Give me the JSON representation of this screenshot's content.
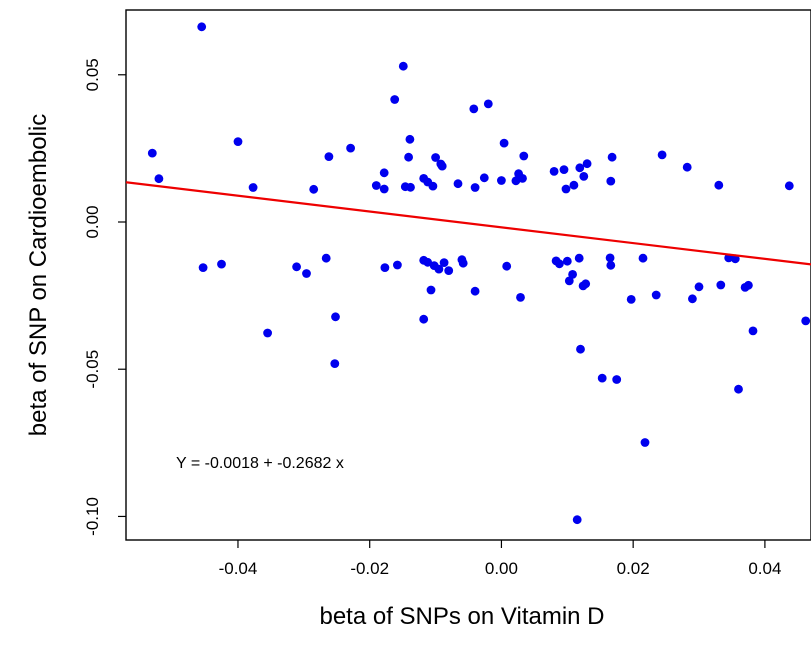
{
  "chart_data": {
    "type": "scatter",
    "title": "",
    "xlabel": "beta of SNPs on Vitamin D",
    "ylabel": "beta of SNP on Cardioembolic",
    "xlim": [
      -0.057,
      0.047
    ],
    "ylim": [
      -0.108,
      0.072
    ],
    "x_ticks": [
      -0.04,
      -0.02,
      0.0,
      0.02,
      0.04
    ],
    "x_tick_labels": [
      "-0.04",
      "-0.02",
      "0.00",
      "0.02",
      "0.04"
    ],
    "y_ticks": [
      0.05,
      0.0,
      -0.05,
      -0.1
    ],
    "y_tick_labels": [
      "0.05",
      "0.00",
      "-0.05",
      "-0.10"
    ],
    "grid": false,
    "point_color": "#0000ee",
    "line_color": "#ee0000",
    "regression": {
      "intercept": -0.0018,
      "slope": -0.2682
    },
    "annotation": "Y =  -0.0018 + -0.2682 x",
    "points": [
      [
        -0.053,
        0.0234
      ],
      [
        -0.052,
        0.0147
      ],
      [
        -0.0455,
        0.0663
      ],
      [
        -0.0453,
        -0.0155
      ],
      [
        -0.0425,
        -0.0143
      ],
      [
        -0.04,
        0.0273
      ],
      [
        -0.0377,
        0.0117
      ],
      [
        -0.0355,
        -0.0377
      ],
      [
        -0.0311,
        -0.0152
      ],
      [
        -0.0296,
        -0.0175
      ],
      [
        -0.0285,
        0.0111
      ],
      [
        -0.0266,
        -0.0123
      ],
      [
        -0.0262,
        0.0222
      ],
      [
        -0.0252,
        -0.0322
      ],
      [
        -0.0253,
        -0.0481
      ],
      [
        -0.0229,
        0.0251
      ],
      [
        -0.019,
        0.0124
      ],
      [
        -0.0178,
        0.0167
      ],
      [
        -0.0178,
        0.0112
      ],
      [
        -0.0177,
        -0.0155
      ],
      [
        -0.0162,
        0.0416
      ],
      [
        -0.0158,
        -0.0146
      ],
      [
        -0.0149,
        0.0529
      ],
      [
        -0.0146,
        0.012
      ],
      [
        -0.0141,
        0.022
      ],
      [
        -0.0139,
        0.0281
      ],
      [
        -0.0138,
        0.0118
      ],
      [
        -0.0118,
        0.0148
      ],
      [
        -0.0118,
        -0.013
      ],
      [
        -0.0118,
        -0.033
      ],
      [
        -0.0112,
        0.0136
      ],
      [
        -0.0112,
        -0.0137
      ],
      [
        -0.0107,
        -0.0231
      ],
      [
        -0.0104,
        0.0122
      ],
      [
        -0.0102,
        -0.0148
      ],
      [
        -0.01,
        0.0219
      ],
      [
        -0.0095,
        -0.016
      ],
      [
        -0.0092,
        0.0197
      ],
      [
        -0.009,
        0.019
      ],
      [
        -0.0087,
        -0.0138
      ],
      [
        -0.008,
        -0.0165
      ],
      [
        -0.0066,
        0.013
      ],
      [
        -0.006,
        -0.0128
      ],
      [
        -0.0058,
        -0.014
      ],
      [
        -0.0042,
        0.0384
      ],
      [
        -0.004,
        0.0117
      ],
      [
        -0.004,
        -0.0235
      ],
      [
        -0.0026,
        0.015
      ],
      [
        -0.002,
        0.0401
      ],
      [
        0.0,
        0.0141
      ],
      [
        0.0004,
        0.0268
      ],
      [
        0.0008,
        -0.015
      ],
      [
        0.0022,
        0.014
      ],
      [
        0.0026,
        0.0164
      ],
      [
        0.0029,
        -0.0256
      ],
      [
        0.0032,
        0.0148
      ],
      [
        0.0034,
        0.0224
      ],
      [
        0.008,
        0.0172
      ],
      [
        0.0083,
        -0.0132
      ],
      [
        0.0088,
        -0.0142
      ],
      [
        0.0095,
        0.0178
      ],
      [
        0.0098,
        0.0112
      ],
      [
        0.01,
        -0.0133
      ],
      [
        0.0103,
        -0.02
      ],
      [
        0.0108,
        -0.0178
      ],
      [
        0.011,
        0.0125
      ],
      [
        0.0115,
        -0.1011
      ],
      [
        0.0118,
        -0.0123
      ],
      [
        0.0119,
        0.0184
      ],
      [
        0.012,
        -0.0432
      ],
      [
        0.0124,
        -0.0217
      ],
      [
        0.0125,
        0.0155
      ],
      [
        0.0128,
        -0.021
      ],
      [
        0.013,
        0.0198
      ],
      [
        0.0153,
        -0.053
      ],
      [
        0.0165,
        -0.0122
      ],
      [
        0.0166,
        0.0139
      ],
      [
        0.0166,
        -0.0147
      ],
      [
        0.0168,
        0.022
      ],
      [
        0.0175,
        -0.0535
      ],
      [
        0.0197,
        -0.0263
      ],
      [
        0.0215,
        -0.0123
      ],
      [
        0.0218,
        -0.0749
      ],
      [
        0.0235,
        -0.0248
      ],
      [
        0.0244,
        0.0228
      ],
      [
        0.0282,
        0.0186
      ],
      [
        0.029,
        -0.0261
      ],
      [
        0.03,
        -0.022
      ],
      [
        0.033,
        0.0125
      ],
      [
        0.0333,
        -0.0214
      ],
      [
        0.0345,
        -0.0122
      ],
      [
        0.0355,
        -0.0125
      ],
      [
        0.036,
        -0.0568
      ],
      [
        0.037,
        -0.0222
      ],
      [
        0.0375,
        -0.0215
      ],
      [
        0.0382,
        -0.037
      ],
      [
        0.0437,
        0.0123
      ],
      [
        0.0462,
        -0.0336
      ]
    ]
  }
}
